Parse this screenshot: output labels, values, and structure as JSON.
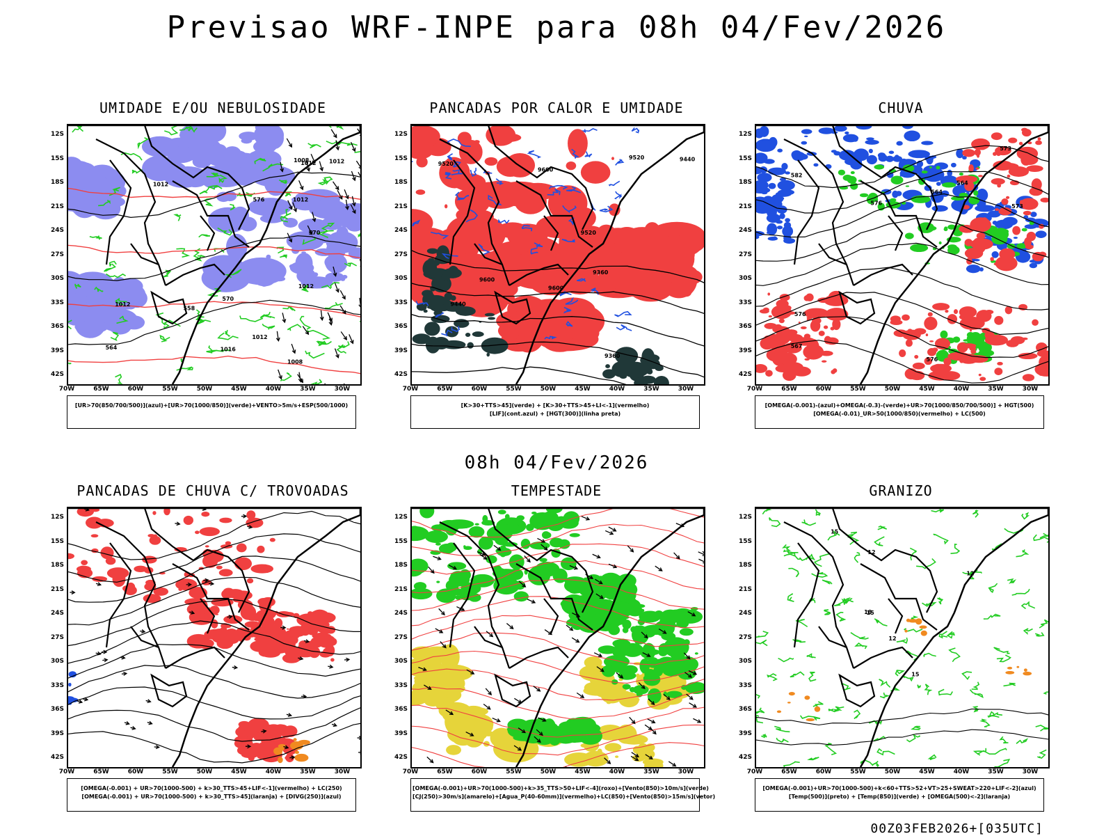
{
  "header": {
    "title": "Previsao WRF-INPE  para 08h 04/Fev/2026",
    "mid_date": "08h 04/Fev/2026",
    "run_stamp": "00Z03FEB2026+[035UTC]"
  },
  "axes": {
    "lat_labels": [
      "12S",
      "15S",
      "18S",
      "21S",
      "24S",
      "27S",
      "30S",
      "33S",
      "36S",
      "39S",
      "42S"
    ],
    "lon_labels": [
      "70W",
      "65W",
      "60W",
      "55W",
      "50W",
      "45W",
      "40W",
      "35W",
      "30W"
    ]
  },
  "colors": {
    "blue_fill": "#8c8cf0",
    "green": "#22cc22",
    "red": "#f04040",
    "blue": "#2050e0",
    "darkgreen": "#203838",
    "yellow": "#e6d43a",
    "orange": "#f08a20"
  },
  "panels": [
    {
      "title": "UMIDADE E/OU NEBULOSIDADE",
      "legend": [
        "[UR>70(850/700/500)](azul)+[UR>70(1000/850)](verde)+VENTO>5m/s+ESP(500/1000)"
      ],
      "contour_labels": [
        "1012",
        "1012",
        "1012",
        "1012",
        "1012",
        "1016",
        "1008",
        "1008",
        "1012",
        "1012",
        "570",
        "576",
        "564",
        "558",
        "570"
      ]
    },
    {
      "title": "PANCADAS POR CALOR E UMIDADE",
      "legend": [
        "[K>30+TTS>45](verde) + [K>30+TTS>45+LI<-1](vermelho)",
        "[LIF](cont.azul) + [HGT(300)](linha preta)"
      ],
      "contour_labels": [
        "9600",
        "9600",
        "9600",
        "9520",
        "9520",
        "9520",
        "9440",
        "9440",
        "9360",
        "9360"
      ]
    },
    {
      "title": "CHUVA",
      "legend": [
        "[OMEGA(-0.001)-(azul)+OMEGA(-0.3)-(verde)+UR>70(1000/850/700/500)] + HGT(500)",
        "[OMEGA(-0.01)_UR>50(1000/850)(vermelho) + LC(500)"
      ],
      "contour_labels": [
        "576",
        "576",
        "573",
        "573",
        "567",
        "564",
        "564",
        "576",
        "582"
      ]
    },
    {
      "title": "PANCADAS DE CHUVA C/ TROVOADAS",
      "legend": [
        "[OMEGA(-0.001) + UR>70(1000-500) + k>30_TTS>45+LIF<-1](vermelho) + LC(250)",
        "[OMEGA(-0.001) + UR>70(1000-500) + k>30_TTS>45](laranja) + [DIVG(250)](azul)"
      ],
      "contour_labels": []
    },
    {
      "title": "TEMPESTADE",
      "legend": [
        "[OMEGA(-0.001)+UR>70(1000-500)+k>35_TTS>50+LIF<-4](roxo)+[Vento(850)>10m/s](verde)",
        "[CJ(250)>30m/s](amarelo)+[Agua_P(40-60mm)](vermelho)+LC(850)+[Vento(850)>15m/s](vetor)"
      ],
      "contour_labels": []
    },
    {
      "title": "GRANIZO",
      "legend": [
        "[OMEGA(-0.001)+UR>70(1000-500)+k<60+TTS>52+VT>25+SWEAT>220+LIF<-2](azul)",
        "[Temp(500)](preto) + [Temp(850)](verde) + [OMEGA(500)<-2](laranja)"
      ],
      "contour_labels": [
        "12",
        "12",
        "12",
        "15",
        "15",
        "15",
        "18"
      ]
    }
  ]
}
